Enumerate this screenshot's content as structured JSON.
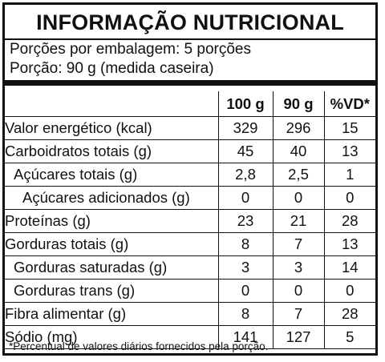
{
  "title": "INFORMAÇÃO NUTRICIONAL",
  "servings_per_package": "Porções por embalagem: 5 porções",
  "serving_size": "Porção: 90 g (medida caseira)",
  "columns": [
    "100 g",
    "90 g",
    "%VD*"
  ],
  "rows": [
    {
      "name": "Valor energético (kcal)",
      "indent": 0,
      "values": [
        "329",
        "296",
        "15"
      ]
    },
    {
      "name": "Carboidratos totais (g)",
      "indent": 0,
      "values": [
        "45",
        "40",
        "13"
      ]
    },
    {
      "name": "Açúcares totais (g)",
      "indent": 1,
      "values": [
        "2,8",
        "2,5",
        "1"
      ]
    },
    {
      "name": "Açúcares adicionados (g)",
      "indent": 2,
      "values": [
        "0",
        "0",
        "0"
      ]
    },
    {
      "name": "Proteínas (g)",
      "indent": 0,
      "values": [
        "23",
        "21",
        "28"
      ]
    },
    {
      "name": "Gorduras totais (g)",
      "indent": 0,
      "values": [
        "8",
        "7",
        "13"
      ]
    },
    {
      "name": "Gorduras saturadas (g)",
      "indent": 1,
      "values": [
        "3",
        "3",
        "14"
      ]
    },
    {
      "name": "Gorduras trans (g)",
      "indent": 1,
      "values": [
        "0",
        "0",
        "0"
      ]
    },
    {
      "name": "Fibra alimentar (g)",
      "indent": 0,
      "values": [
        "8",
        "7",
        "28"
      ]
    },
    {
      "name": "Sódio (mg)",
      "indent": 0,
      "values": [
        "141",
        "127",
        "5"
      ]
    }
  ],
  "footnote": "*Percentual de valores diários fornecidos pela porção."
}
